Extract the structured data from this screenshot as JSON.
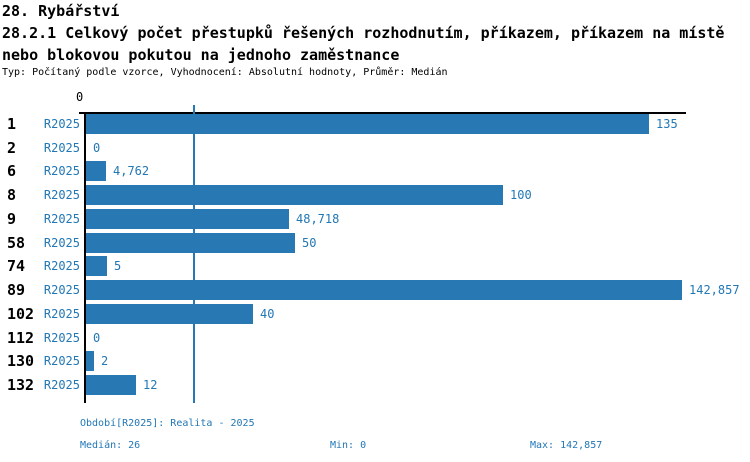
{
  "colors": {
    "accent": "#2277b5",
    "bar": "#2878b4",
    "axis": "#000000"
  },
  "header": {
    "title_line1": "28. Rybářství",
    "title_line2": "28.2.1 Celkový počet přestupků řešených rozhodnutím, příkazem, příkazem na místě",
    "title_line3": "nebo blokovou pokutou na jednoho zaměstnance",
    "meta": "Typ: Počítaný podle vzorce, Vyhodnocení: Absolutní hodnoty, Průměr: Medián"
  },
  "chart_data": {
    "type": "bar",
    "orientation": "horizontal",
    "title": "28.2.1 Celkový počet přestupků řešených rozhodnutím, příkazem, příkazem na místě nebo blokovou pokutou na jednoho zaměstnance",
    "subtitle": "Typ: Počítaný podle vzorce, Vyhodnocení: Absolutní hodnoty, Průměr: Medián",
    "series_label": "R2025",
    "categories": [
      "1",
      "2",
      "6",
      "8",
      "9",
      "58",
      "74",
      "89",
      "102",
      "112",
      "130",
      "132"
    ],
    "values": [
      135,
      0,
      4.762,
      100,
      48.718,
      50,
      5,
      142.857,
      40,
      0,
      2,
      12
    ],
    "value_labels": [
      "135",
      "0",
      "4,762",
      "100",
      "48,718",
      "50",
      "5",
      "142,857",
      "40",
      "0",
      "2",
      "12"
    ],
    "axis": {
      "tick_label": "0",
      "min": 0,
      "max": 142.857
    },
    "median_line_value": 26,
    "grid": false,
    "legend": "none"
  },
  "footer": {
    "period": "Období[R2025]: Realita - 2025",
    "median": "Medián: 26",
    "min": "Min: 0",
    "max": "Max: 142,857"
  }
}
